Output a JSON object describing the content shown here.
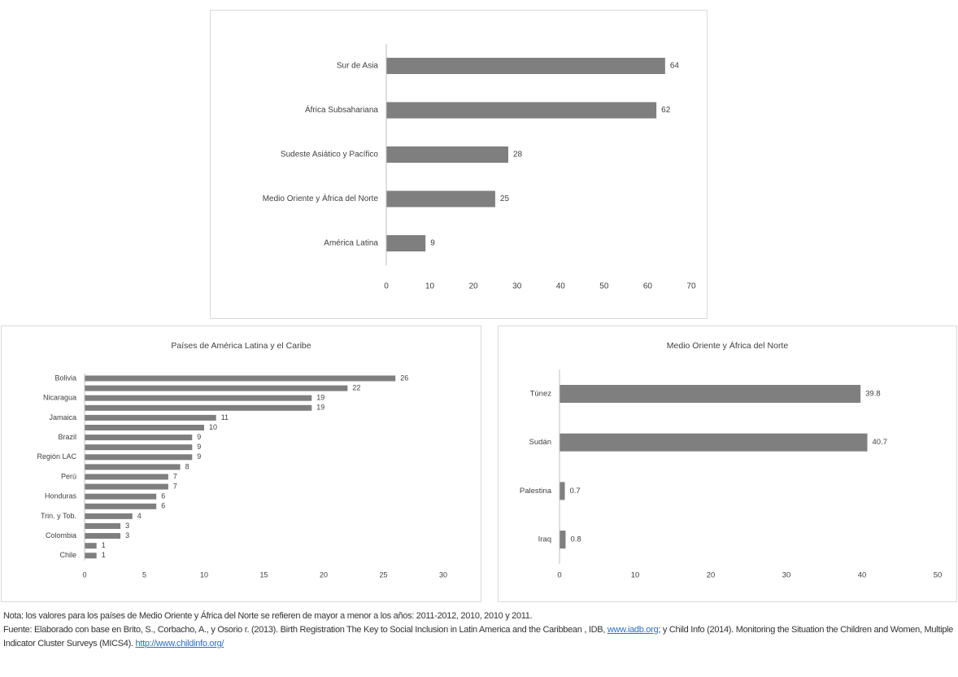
{
  "chart_data": [
    {
      "type": "barh",
      "categories": [
        "Sur de Asia",
        "África Subsahariana",
        "Sudeste Asiático y  Pacífico",
        "Medio Oriente y África del Norte",
        "América Latina"
      ],
      "values": [
        64,
        62,
        28,
        25,
        9
      ],
      "color": "#7f7f7f",
      "xlim": [
        0,
        70
      ],
      "xticks": [
        0,
        10,
        20,
        30,
        40,
        50,
        60,
        70
      ],
      "grid": false
    },
    {
      "type": "barh",
      "title": "Países de América Latina y el Caribe",
      "categories": [
        "Bolivia",
        null,
        "Nicaragua",
        null,
        "Jamaica",
        null,
        "Brazil",
        null,
        "Región LAC",
        null,
        "Perú",
        null,
        "Honduras",
        null,
        "Trin. y Tob.",
        null,
        "Colombia",
        null,
        "Chile"
      ],
      "values": [
        26,
        22,
        19,
        19,
        11,
        10,
        9,
        9,
        9,
        8,
        7,
        7,
        6,
        6,
        4,
        3,
        3,
        1,
        1
      ],
      "color": "#7f7f7f",
      "xlim": [
        0,
        30
      ],
      "xticks": [
        0,
        5,
        10,
        15,
        20,
        25,
        30
      ],
      "grid": false
    },
    {
      "type": "barh",
      "title": "Medio Oriente y África del Norte",
      "categories": [
        "Túnez",
        "Sudán",
        "Palestina",
        "Iraq"
      ],
      "values": [
        39.8,
        40.7,
        0.7,
        0.8
      ],
      "color": "#7f7f7f",
      "xlim": [
        0,
        50
      ],
      "xticks": [
        0,
        10,
        20,
        30,
        40,
        50
      ],
      "grid": false
    }
  ],
  "notes": {
    "nota": "Nota: los valores para los países de Medio Oriente y África del Norte se refieren de mayor a menor a los años: 2011-2012,  2010,  2010  y 2011.",
    "fuente": [
      "Fuente: Elaborado con base en Brito, S., Corbacho, A., y Osorio r. (2013). Birth Registration The Key to Social Inclusion in Latin America and the Caribbean , IDB, ",
      "www.iadb.org",
      "; y Child Info (2014). Monitoring the Situation the Children and Women, Multiple Indicator Cluster Surveys (MICS4). ",
      "http://www.childinfo.org/"
    ]
  }
}
